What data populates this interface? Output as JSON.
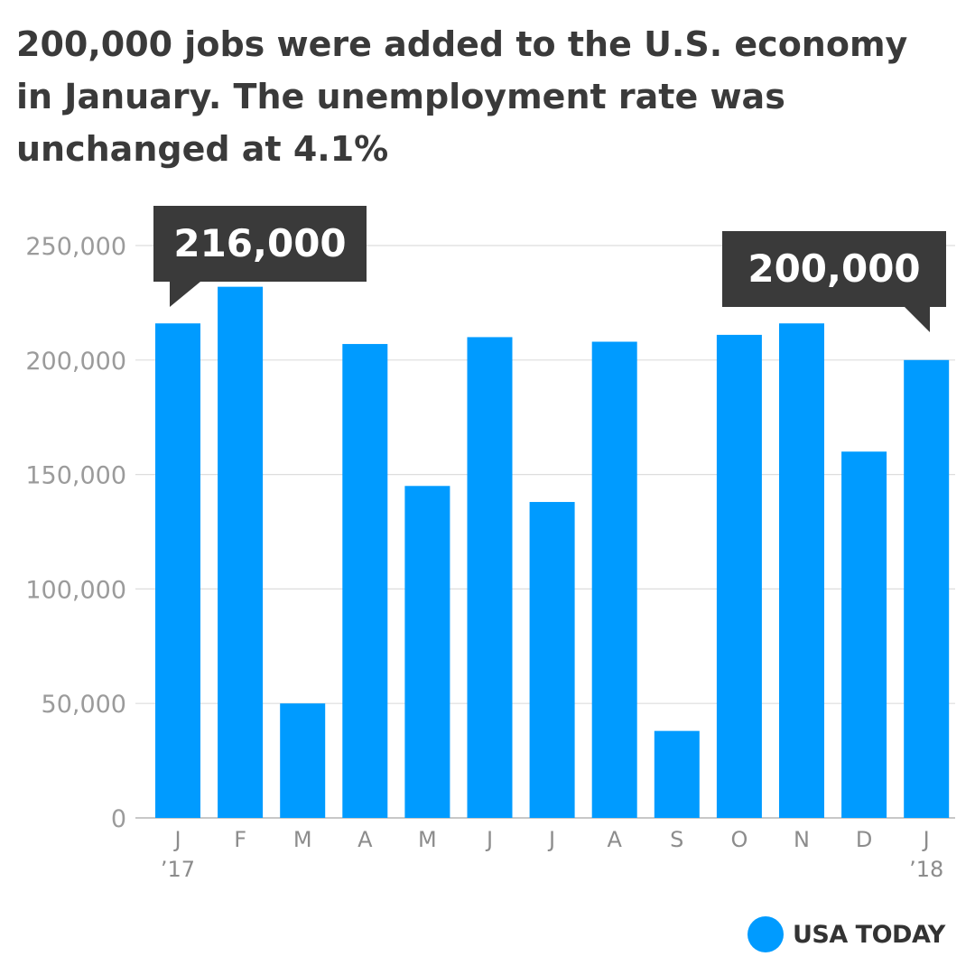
{
  "title": "200,000 jobs were added to the U.S. economy in January. The unemployment rate was unchanged at 4.1%",
  "brand": {
    "name": "USA TODAY",
    "dot_color": "#009bff"
  },
  "colors": {
    "bar": "#009bff",
    "grid": "#dddddd",
    "callout_bg": "#3a3a3a"
  },
  "chart_data": {
    "type": "bar",
    "title": "200,000 jobs were added to the U.S. economy in January. The unemployment rate was unchanged at 4.1%",
    "categories": [
      "J",
      "F",
      "M",
      "A",
      "M",
      "J",
      "J",
      "A",
      "S",
      "O",
      "N",
      "D",
      "J"
    ],
    "category_sublabels": [
      "’17",
      "",
      "",
      "",
      "",
      "",
      "",
      "",
      "",
      "",
      "",
      "",
      "’18"
    ],
    "values": [
      216000,
      232000,
      50000,
      207000,
      145000,
      210000,
      138000,
      208000,
      38000,
      211000,
      216000,
      160000,
      200000
    ],
    "yticks": [
      0,
      50000,
      100000,
      150000,
      200000,
      250000
    ],
    "ytick_labels": [
      "0",
      "50,000",
      "100,000",
      "150,000",
      "200,000",
      "250,000"
    ],
    "ylim": [
      0,
      250000
    ],
    "xlabel": "",
    "ylabel": "",
    "grid": true,
    "annotations": [
      {
        "label": "216,000",
        "category_index": 0,
        "value": 216000,
        "pointer": "bottom-left"
      },
      {
        "label": "200,000",
        "category_index": 12,
        "value": 200000,
        "pointer": "bottom-right"
      }
    ]
  }
}
